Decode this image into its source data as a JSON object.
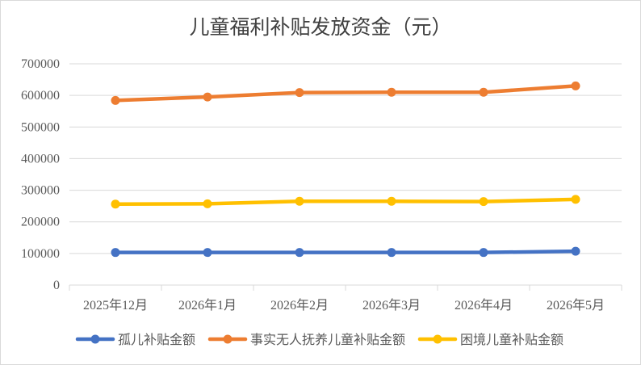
{
  "chart_data": {
    "type": "line",
    "title": "儿童福利补贴发放资金（元）",
    "categories": [
      "2025年12月",
      "2026年1月",
      "2026年2月",
      "2026年3月",
      "2026年4月",
      "2026年5月"
    ],
    "ylim": [
      0,
      700000
    ],
    "y_ticks": [
      "0",
      "100000",
      "200000",
      "300000",
      "400000",
      "500000",
      "600000",
      "700000"
    ],
    "grid": true,
    "legend_position": "bottom",
    "series": [
      {
        "name": "孤儿补贴金额",
        "color": "#4472c4",
        "values": [
          103000,
          103000,
          103000,
          103000,
          103000,
          107000
        ]
      },
      {
        "name": "事实无人抚养儿童补贴金额",
        "color": "#ed7d31",
        "values": [
          584000,
          595000,
          609000,
          610000,
          610000,
          630000
        ]
      },
      {
        "name": "困境儿童补贴金额",
        "color": "#ffc000",
        "values": [
          256000,
          257000,
          265000,
          265000,
          264000,
          271000
        ]
      }
    ]
  }
}
